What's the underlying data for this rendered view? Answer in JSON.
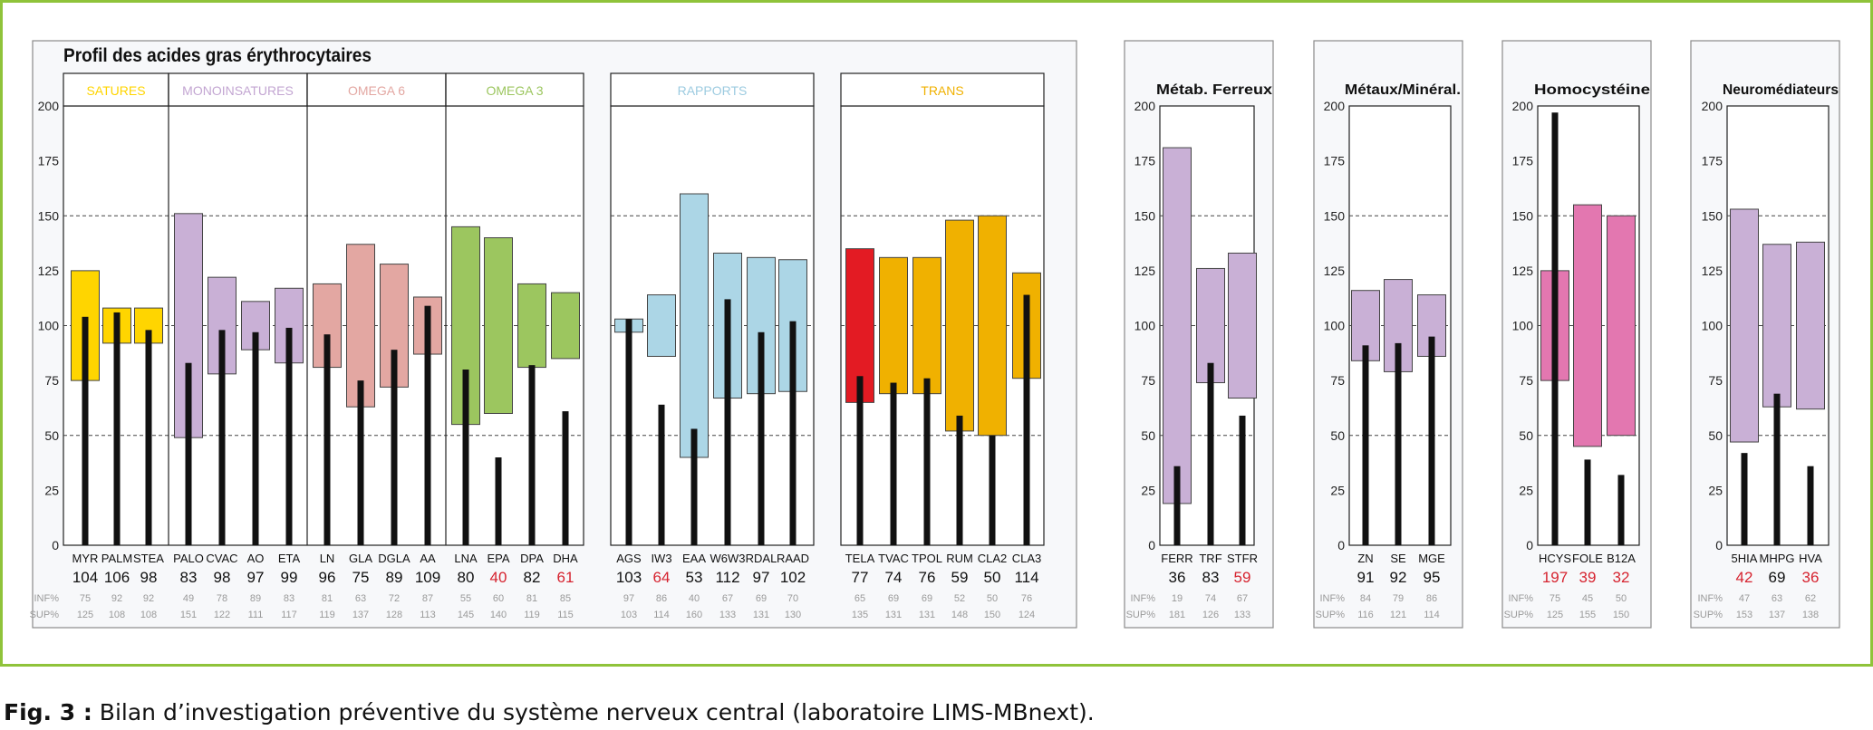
{
  "caption": {
    "lead": "Fig. 3 :",
    "text": " Bilan d’investigation préventive du système nerveux central (laboratoire LIMS-MBnext)."
  },
  "chart_data": {
    "type": "bar",
    "title": "Profil des acides gras érythrocytaires",
    "ylim": [
      0,
      200
    ],
    "yticks": [
      0,
      25,
      50,
      75,
      100,
      125,
      150,
      175,
      200
    ],
    "grid_dashed": [
      50,
      100,
      150
    ],
    "row_labels": {
      "inf": "INF%",
      "sup": "SUP%"
    },
    "colors": {
      "yellow": "#ffd500",
      "lilac": "#c9b0d6",
      "salmon": "#e3a7a2",
      "green": "#9cc65f",
      "lightblue": "#acd6e6",
      "orange": "#f0b100",
      "red": "#e31b23",
      "pink": "#e377b0",
      "value_low": "#d6232f",
      "value_normal": "#111111"
    },
    "panels": [
      {
        "title": "Profil des acides gras érythrocytaires",
        "groups": [
          {
            "label": "SATURES",
            "label_color": "#ffd500",
            "items": [
              {
                "name": "MYR",
                "value": "104",
                "inf": "75",
                "sup": "125",
                "color": "yellow"
              },
              {
                "name": "PALM",
                "value": "106",
                "inf": "92",
                "sup": "108",
                "color": "yellow"
              },
              {
                "name": "STEA",
                "value": "98",
                "inf": "92",
                "sup": "108",
                "color": "yellow"
              }
            ]
          },
          {
            "label": "MONOINSATURES",
            "label_color": "#c3a6d2",
            "items": [
              {
                "name": "PALO",
                "value": "83",
                "inf": "49",
                "sup": "151",
                "color": "lilac"
              },
              {
                "name": "CVAC",
                "value": "98",
                "inf": "78",
                "sup": "122",
                "color": "lilac"
              },
              {
                "name": "AO",
                "value": "97",
                "inf": "89",
                "sup": "111",
                "color": "lilac"
              },
              {
                "name": "ETA",
                "value": "99",
                "inf": "83",
                "sup": "117",
                "color": "lilac"
              }
            ]
          },
          {
            "label": "OMEGA 6",
            "label_color": "#e3a7a2",
            "items": [
              {
                "name": "LN",
                "value": "96",
                "inf": "81",
                "sup": "119",
                "color": "salmon"
              },
              {
                "name": "GLA",
                "value": "75",
                "inf": "63",
                "sup": "137",
                "color": "salmon"
              },
              {
                "name": "DGLA",
                "value": "89",
                "inf": "72",
                "sup": "128",
                "color": "salmon"
              },
              {
                "name": "AA",
                "value": "109",
                "inf": "87",
                "sup": "113",
                "color": "salmon"
              }
            ]
          },
          {
            "label": "OMEGA 3",
            "label_color": "#9cc65f",
            "items": [
              {
                "name": "LNA",
                "value": "80",
                "inf": "55",
                "sup": "145",
                "color": "green"
              },
              {
                "name": "EPA",
                "value": "40",
                "inf": "60",
                "sup": "140",
                "color": "green",
                "low": true
              },
              {
                "name": "DPA",
                "value": "82",
                "inf": "81",
                "sup": "119",
                "color": "green"
              },
              {
                "name": "DHA",
                "value": "61",
                "inf": "85",
                "sup": "115",
                "color": "green",
                "low": true
              }
            ]
          },
          {
            "label": "RAPPORTS",
            "label_color": "#9ccbe0",
            "items": [
              {
                "name": "AGS",
                "value": "103",
                "inf": "97",
                "sup": "103",
                "color": "lightblue"
              },
              {
                "name": "IW3",
                "value": "64",
                "inf": "86",
                "sup": "114",
                "color": "lightblue",
                "low": true
              },
              {
                "name": "EAA",
                "value": "53",
                "inf": "40",
                "sup": "160",
                "color": "lightblue"
              },
              {
                "name": "W6W3",
                "value": "112",
                "inf": "67",
                "sup": "133",
                "color": "lightblue"
              },
              {
                "name": "RDAL",
                "value": "97",
                "inf": "69",
                "sup": "131",
                "color": "lightblue"
              },
              {
                "name": "RAAD",
                "value": "102",
                "inf": "70",
                "sup": "130",
                "color": "lightblue"
              }
            ]
          },
          {
            "label": "TRANS",
            "label_color": "#f0b100",
            "items": [
              {
                "name": "TELA",
                "value": "77",
                "inf": "65",
                "sup": "135",
                "color": "red"
              },
              {
                "name": "TVAC",
                "value": "74",
                "inf": "69",
                "sup": "131",
                "color": "orange"
              },
              {
                "name": "TPOL",
                "value": "76",
                "inf": "69",
                "sup": "131",
                "color": "orange"
              },
              {
                "name": "RUM",
                "value": "59",
                "inf": "52",
                "sup": "148",
                "color": "orange"
              },
              {
                "name": "CLA2",
                "value": "50",
                "inf": "50",
                "sup": "150",
                "color": "orange"
              },
              {
                "name": "CLA3",
                "value": "114",
                "inf": "76",
                "sup": "124",
                "color": "orange"
              }
            ]
          }
        ]
      },
      {
        "title": "Métab. Ferreux",
        "groups": [
          {
            "label": "",
            "items": [
              {
                "name": "FERR",
                "value": "36",
                "inf": "19",
                "sup": "181",
                "color": "lilac"
              },
              {
                "name": "TRF",
                "value": "83",
                "inf": "74",
                "sup": "126",
                "color": "lilac"
              },
              {
                "name": "STFR",
                "value": "59",
                "inf": "67",
                "sup": "133",
                "color": "lilac",
                "low": true
              }
            ]
          }
        ]
      },
      {
        "title": "Métaux/Minéral.",
        "groups": [
          {
            "label": "",
            "items": [
              {
                "name": "ZN",
                "value": "91",
                "inf": "84",
                "sup": "116",
                "color": "lilac"
              },
              {
                "name": "SE",
                "value": "92",
                "inf": "79",
                "sup": "121",
                "color": "lilac"
              },
              {
                "name": "MGE",
                "value": "95",
                "inf": "86",
                "sup": "114",
                "color": "lilac"
              }
            ]
          }
        ]
      },
      {
        "title": "Homocystéine",
        "groups": [
          {
            "label": "",
            "items": [
              {
                "name": "HCYS",
                "value": "197",
                "inf": "75",
                "sup": "125",
                "color": "pink",
                "low": true
              },
              {
                "name": "FOLE",
                "value": "39",
                "inf": "45",
                "sup": "155",
                "color": "pink",
                "low": true
              },
              {
                "name": "B12A",
                "value": "32",
                "inf": "50",
                "sup": "150",
                "color": "pink",
                "low": true
              }
            ]
          }
        ]
      },
      {
        "title": "Neuromédiateurs",
        "groups": [
          {
            "label": "",
            "items": [
              {
                "name": "5HIA",
                "value": "42",
                "inf": "47",
                "sup": "153",
                "color": "lilac",
                "low": true
              },
              {
                "name": "MHPG",
                "value": "69",
                "inf": "63",
                "sup": "137",
                "color": "lilac"
              },
              {
                "name": "HVA",
                "value": "36",
                "inf": "62",
                "sup": "138",
                "color": "lilac",
                "low": true
              }
            ]
          }
        ]
      }
    ]
  }
}
